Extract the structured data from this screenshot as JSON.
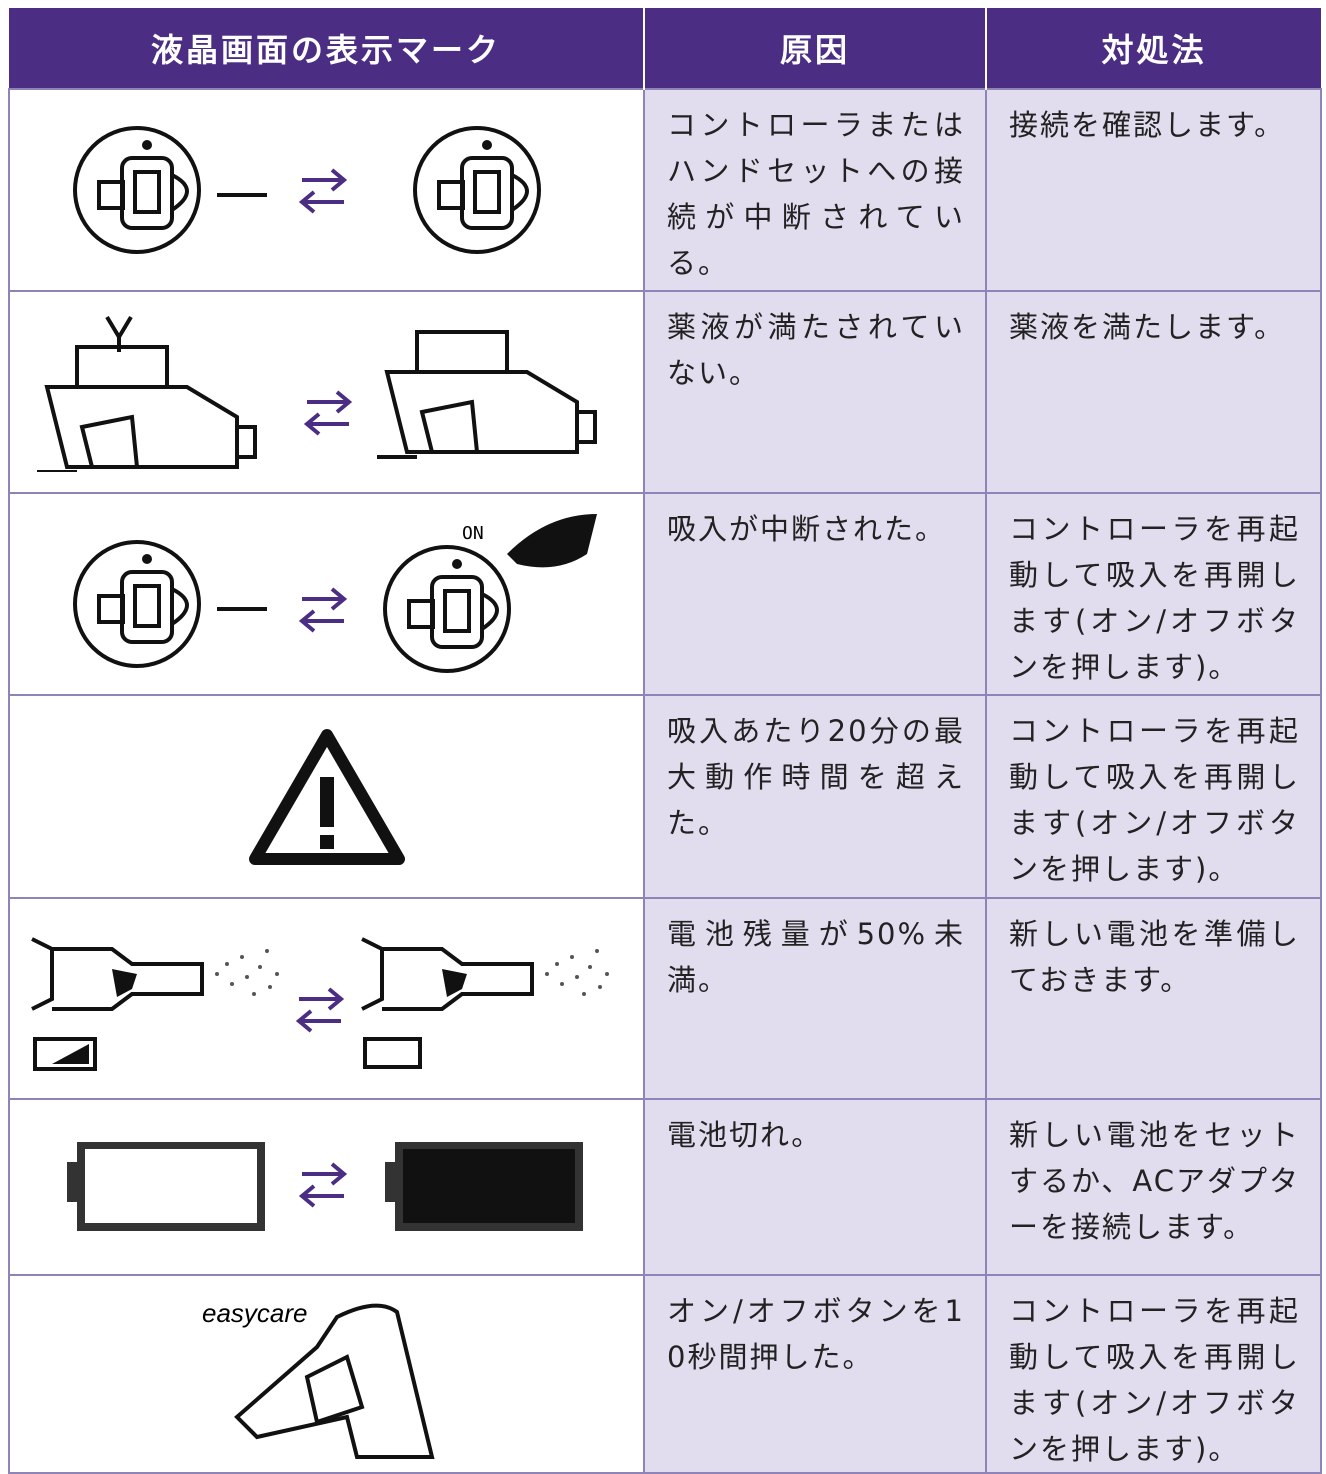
{
  "table": {
    "headers": [
      "液晶画面の表示マーク",
      "原因",
      "対処法"
    ],
    "rows": [
      {
        "cause": "コントローラまたはハンドセットへの接続が中断されている。",
        "action": "接続を確認します。"
      },
      {
        "cause": "薬液が満たされていない。",
        "action": "薬液を満たします。"
      },
      {
        "icon_text": "ON",
        "cause": "吸入が中断された。",
        "action": "コントローラを再起動して吸入を再開します(オン/オフボタンを押します)。"
      },
      {
        "cause": "吸入あたり20分の最大動作時間を超えた。",
        "action": "コントローラを再起動して吸入を再開します(オン/オフボタンを押します)。"
      },
      {
        "cause": "電池残量が50%未満。",
        "action": "新しい電池を準備しておきます。"
      },
      {
        "cause": "電池切れ。",
        "action": "新しい電池をセットするか、ACアダプターを接続します。"
      },
      {
        "icon_text": "easycare",
        "cause": "オン/オフボタンを10秒間押した。",
        "action": "コントローラを再起動して吸入を再開します(オン/オフボタンを押します)。"
      }
    ]
  }
}
